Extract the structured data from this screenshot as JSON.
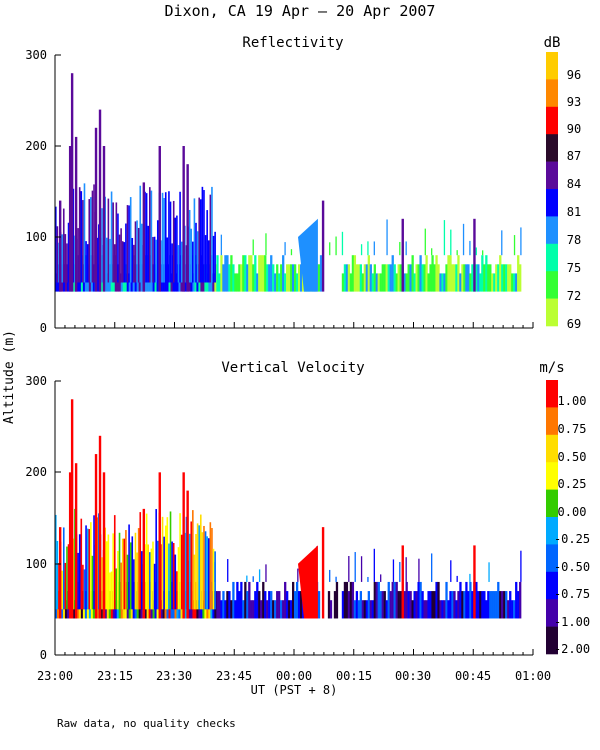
{
  "chart_data": {
    "title": "Dixon, CA 19 Apr — 20 Apr 2007",
    "ylabel": "Altitude (m)",
    "xlabel": "UT  (PST + 8)",
    "note": "Raw data, no quality checks",
    "x_ticks": [
      "23:00",
      "23:15",
      "23:30",
      "23:45",
      "00:00",
      "00:15",
      "00:30",
      "00:45",
      "01:00"
    ],
    "x_range_minutes": [
      0,
      120
    ],
    "panels": [
      {
        "type": "heatmap",
        "title": "Reflectivity",
        "units": "dB",
        "ylim": [
          0,
          300
        ],
        "y_ticks": [
          "0",
          "100",
          "200",
          "300"
        ],
        "colorbar_labels": [
          "96",
          "93",
          "90",
          "87",
          "84",
          "81",
          "78",
          "75",
          "72",
          "69"
        ],
        "colorbar_colors": [
          "#ffcc00",
          "#ff8800",
          "#ff0000",
          "#2a0a2a",
          "#5a0a9a",
          "#0000ff",
          "#1e90ff",
          "#00ffaa",
          "#33ff33",
          "#bbff33"
        ],
        "base_altitude": 40,
        "tall_echoes": [
          {
            "t": 1,
            "top": 140
          },
          {
            "t": 3.5,
            "top": 200
          },
          {
            "t": 4,
            "top": 280
          },
          {
            "t": 5,
            "top": 210
          },
          {
            "t": 10,
            "top": 220
          },
          {
            "t": 11,
            "top": 240
          },
          {
            "t": 12,
            "top": 200
          },
          {
            "t": 22,
            "top": 160
          },
          {
            "t": 26,
            "top": 200
          },
          {
            "t": 32,
            "top": 200
          },
          {
            "t": 33,
            "top": 180
          },
          {
            "t": 67,
            "top": 140
          },
          {
            "t": 87,
            "top": 120
          },
          {
            "t": 105,
            "top": 120
          }
        ]
      },
      {
        "type": "heatmap",
        "title": "Vertical Velocity",
        "units": "m/s",
        "ylim": [
          0,
          300
        ],
        "y_ticks": [
          "0",
          "100",
          "200",
          "300"
        ],
        "colorbar_labels": [
          "1.00",
          "0.75",
          "0.50",
          "0.25",
          "0.00",
          "-0.25",
          "-0.50",
          "-0.75",
          "-1.00",
          "-2.00"
        ],
        "colorbar_colors": [
          "#ff0000",
          "#ff7700",
          "#ffdd00",
          "#ffff00",
          "#33cc00",
          "#00aaff",
          "#0066ff",
          "#0000ff",
          "#4400aa",
          "#220033"
        ],
        "base_altitude": 40,
        "tall_echoes": [
          {
            "t": 1,
            "top": 140
          },
          {
            "t": 3.5,
            "top": 200
          },
          {
            "t": 4,
            "top": 280
          },
          {
            "t": 5,
            "top": 210
          },
          {
            "t": 10,
            "top": 220
          },
          {
            "t": 11,
            "top": 240
          },
          {
            "t": 12,
            "top": 200
          },
          {
            "t": 22,
            "top": 160
          },
          {
            "t": 26,
            "top": 200
          },
          {
            "t": 32,
            "top": 200
          },
          {
            "t": 33,
            "top": 180
          },
          {
            "t": 67,
            "top": 140
          },
          {
            "t": 87,
            "top": 120
          },
          {
            "t": 105,
            "top": 120
          }
        ]
      }
    ]
  }
}
